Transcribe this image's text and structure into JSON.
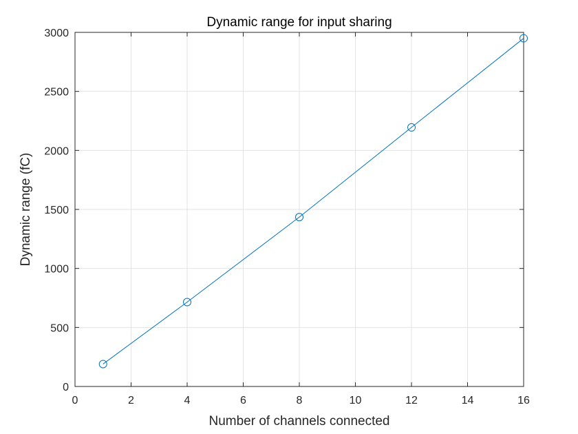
{
  "chart_data": {
    "type": "line",
    "title": "Dynamic range for input sharing",
    "xlabel": "Number of channels connected",
    "ylabel": "Dynamic range (fC)",
    "xlim": [
      0,
      16
    ],
    "ylim": [
      0,
      3000
    ],
    "xticks": [
      0,
      2,
      4,
      6,
      8,
      10,
      12,
      14,
      16
    ],
    "yticks": [
      0,
      500,
      1000,
      1500,
      2000,
      2500,
      3000
    ],
    "grid": true,
    "marker": "circle",
    "series_color": "#0072BD",
    "x": [
      1,
      4,
      8,
      12,
      16
    ],
    "series": [
      {
        "values": [
          190,
          715,
          1435,
          2195,
          2950
        ]
      }
    ]
  }
}
